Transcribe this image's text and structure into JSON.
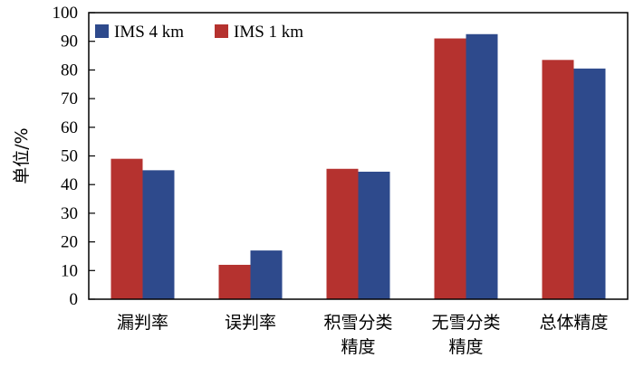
{
  "chart_data": {
    "type": "bar",
    "categories": [
      [
        "漏判率"
      ],
      [
        "误判率"
      ],
      [
        "积雪分类",
        "精度"
      ],
      [
        "无雪分类",
        "精度"
      ],
      [
        "总体精度"
      ]
    ],
    "series": [
      {
        "name": "IMS 1 km",
        "values": [
          49,
          12,
          45.5,
          91,
          83.5
        ],
        "color": "#b5322f"
      },
      {
        "name": "IMS 4 km",
        "values": [
          45,
          17,
          44.5,
          92.5,
          80.5
        ],
        "color": "#2e4a8c"
      }
    ],
    "legend_order": [
      1,
      0
    ],
    "legend_position": "top-left",
    "ylabel": "单位/%",
    "xlabel": "",
    "ylim": [
      0,
      100
    ],
    "yticks": [
      0,
      10,
      20,
      30,
      40,
      50,
      60,
      70,
      80,
      90,
      100
    ],
    "grid": false
  }
}
